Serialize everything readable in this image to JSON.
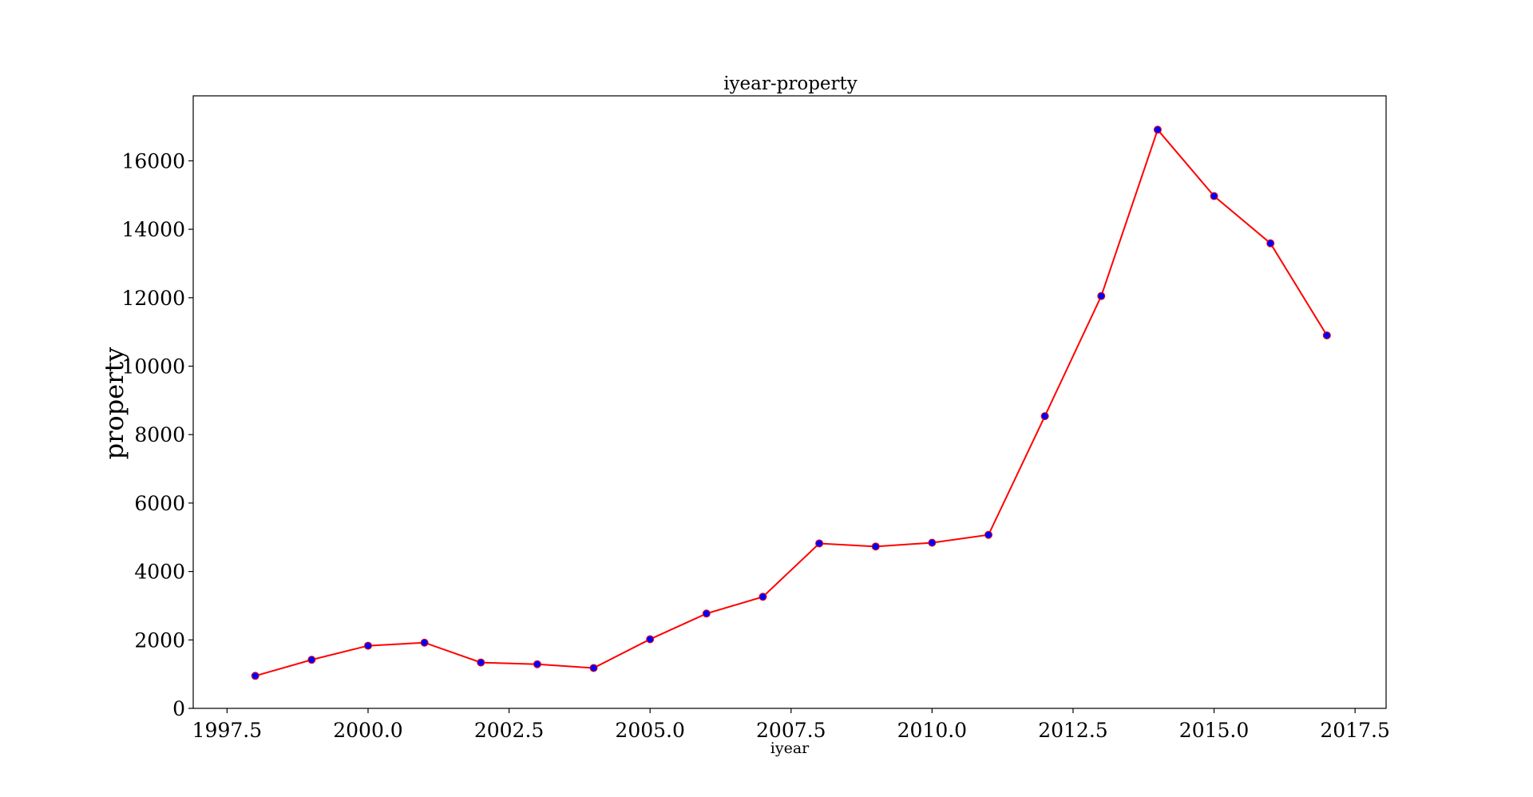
{
  "chart_data": {
    "type": "line",
    "title": "iyear-property",
    "xlabel": "iyear",
    "ylabel": "property",
    "xlim": [
      1996.9,
      2018.05
    ],
    "ylim": [
      0,
      17900
    ],
    "xticks": [
      1997.5,
      2000.0,
      2002.5,
      2005.0,
      2007.5,
      2010.0,
      2012.5,
      2015.0,
      2017.5
    ],
    "xtick_labels": [
      "1997.5",
      "2000.0",
      "2002.5",
      "2005.0",
      "2007.5",
      "2010.0",
      "2012.5",
      "2015.0",
      "2017.5"
    ],
    "yticks": [
      0,
      2000,
      4000,
      6000,
      8000,
      10000,
      12000,
      14000,
      16000
    ],
    "ytick_labels": [
      "0",
      "2000",
      "4000",
      "6000",
      "8000",
      "10000",
      "12000",
      "14000",
      "16000"
    ],
    "grid": false,
    "series": [
      {
        "line_color": "#ff0000",
        "marker_color": "#0000ff",
        "x": [
          1998,
          1999,
          2000,
          2001,
          2002,
          2003,
          2004,
          2005,
          2006,
          2007,
          2008,
          2009,
          2010,
          2011,
          2012,
          2013,
          2014,
          2015,
          2016,
          2017
        ],
        "y": [
          950,
          1420,
          1830,
          1920,
          1340,
          1290,
          1180,
          2020,
          2770,
          3260,
          4820,
          4730,
          4840,
          5070,
          8540,
          12050,
          16910,
          14970,
          13590,
          10900
        ]
      }
    ]
  }
}
